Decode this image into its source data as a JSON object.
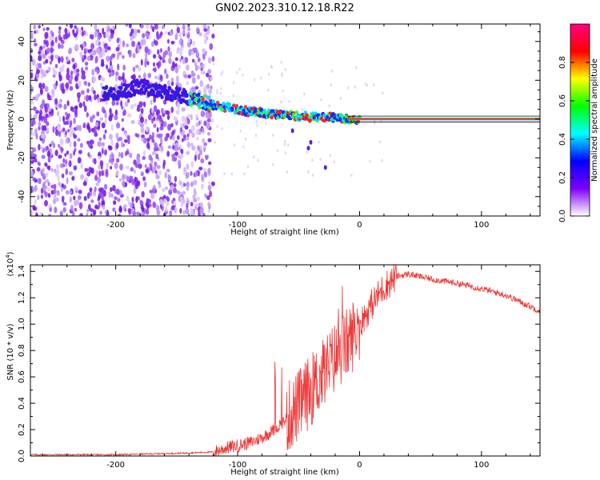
{
  "figure": {
    "title": "GN02.2023.310.12.18.R22"
  },
  "chart_data": [
    {
      "type": "heatmap",
      "xlabel": "Height of straight line (km)",
      "ylabel": "Frequency (Hz)",
      "xlim": [
        -270,
        148
      ],
      "ylim": [
        -50,
        49
      ],
      "xticks": [
        -200,
        -100,
        0,
        100
      ],
      "yticks": [
        -40,
        -20,
        0,
        20,
        40
      ],
      "colorbar": {
        "label": "Normalized spectral amplitude",
        "range": [
          0.0,
          1.0
        ],
        "ticks": [
          0.0,
          0.2,
          0.4,
          0.6,
          0.8
        ],
        "colors": [
          "#ffffff",
          "#7f00ff",
          "#0000ff",
          "#00ffff",
          "#00ff00",
          "#ffff00",
          "#ff0000",
          "#ff0080"
        ]
      },
      "ridge": {
        "x": [
          -200,
          -180,
          -160,
          -140,
          -120,
          -100,
          -80,
          -60,
          -40,
          -20,
          -10,
          0,
          50,
          100,
          148
        ],
        "y": [
          13,
          17,
          14,
          11,
          7,
          5,
          3,
          2,
          1,
          1,
          0,
          0,
          0,
          0,
          0
        ]
      },
      "scatter_region_x": [
        -270,
        -120
      ]
    },
    {
      "type": "line",
      "xlabel": "Height of straight line (km)",
      "ylabel": "SNR (10 * v/v)",
      "y_multiplier": "(x10",
      "y_multiplier_exp": "4",
      "y_multiplier_close": ")",
      "xlim": [
        -270,
        148
      ],
      "ylim": [
        0,
        1.45
      ],
      "xticks": [
        -200,
        -100,
        0,
        100
      ],
      "yticks": [
        0.0,
        0.2,
        0.4,
        0.6,
        0.8,
        1.0,
        1.2,
        1.4
      ],
      "series": [
        {
          "color": "#ee3333",
          "x": [
            -270,
            -200,
            -150,
            -120,
            -110,
            -100,
            -90,
            -80,
            -70,
            -60,
            -50,
            -40,
            -30,
            -20,
            -10,
            0,
            10,
            20,
            30,
            40,
            50,
            60,
            80,
            100,
            120,
            148
          ],
          "y": [
            0.01,
            0.01,
            0.02,
            0.03,
            0.06,
            0.08,
            0.1,
            0.14,
            0.2,
            0.28,
            0.38,
            0.5,
            0.62,
            0.75,
            0.85,
            1.0,
            1.15,
            1.28,
            1.36,
            1.38,
            1.36,
            1.34,
            1.31,
            1.27,
            1.22,
            1.1
          ]
        }
      ]
    }
  ]
}
